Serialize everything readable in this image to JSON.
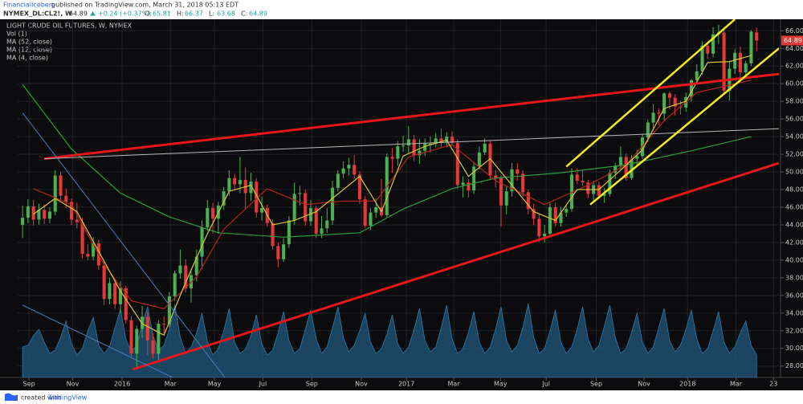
{
  "header": {
    "publisher": "FinancialIceberg",
    "published": "published on TradingView.com, March 31, 2018 05:13 EDT",
    "symbol": "NYMEX_DL:CL2!, W",
    "last": 64.89,
    "change": "+0.24 (+0.37%)",
    "ohlc": [
      {
        "label": "O:",
        "value": 65.81
      },
      {
        "label": "H:",
        "value": 66.37
      },
      {
        "label": "L:",
        "value": 63.68
      },
      {
        "label": "C:",
        "value": 64.89
      }
    ]
  },
  "footer": {
    "text": "created with",
    "brand": "TradingView"
  },
  "chart_data": {
    "type": "candlestick",
    "title": "LIGHT CRUDE OIL FUTURES, W, NYMEX",
    "up_color": "#4caf50",
    "down_color": "#e53935",
    "grid": true,
    "last_price": 64.89,
    "xlim": [
      -0.9,
      139.1
    ],
    "ylim": [
      26.7,
      67.3
    ],
    "xticks": [
      {
        "value": 1.2,
        "label": "Sep"
      },
      {
        "value": 9.2,
        "label": "Nov"
      },
      {
        "value": 18.3,
        "label": "2016"
      },
      {
        "value": 27.2,
        "label": "Mar"
      },
      {
        "value": 35.3,
        "label": "May"
      },
      {
        "value": 44.2,
        "label": "Jul"
      },
      {
        "value": 53.2,
        "label": "Sep"
      },
      {
        "value": 62.3,
        "label": "Nov"
      },
      {
        "value": 70.6,
        "label": "2017"
      },
      {
        "value": 79.3,
        "label": "Mar"
      },
      {
        "value": 87.9,
        "label": "May"
      },
      {
        "value": 96.3,
        "label": "Jul"
      },
      {
        "value": 105.5,
        "label": "Sep"
      },
      {
        "value": 114.3,
        "label": "Nov"
      },
      {
        "value": 122.3,
        "label": "2018"
      },
      {
        "value": 131.2,
        "label": "Mar"
      },
      {
        "value": 138.1,
        "label": "23"
      }
    ],
    "yticks": [
      {
        "value": 28,
        "label": "28.00"
      },
      {
        "value": 30,
        "label": "30.00"
      },
      {
        "value": 32,
        "label": "32.00"
      },
      {
        "value": 34,
        "label": "34.00"
      },
      {
        "value": 36,
        "label": "36.00"
      },
      {
        "value": 38,
        "label": "38.00"
      },
      {
        "value": 40,
        "label": "40.00"
      },
      {
        "value": 42,
        "label": "42.00"
      },
      {
        "value": 44,
        "label": "44.00"
      },
      {
        "value": 46,
        "label": "46.00"
      },
      {
        "value": 48,
        "label": "48.00"
      },
      {
        "value": 50,
        "label": "50.00"
      },
      {
        "value": 52,
        "label": "52.00"
      },
      {
        "value": 54,
        "label": "54.00"
      },
      {
        "value": 56,
        "label": "56.00"
      },
      {
        "value": 58,
        "label": "58.00"
      },
      {
        "value": 60,
        "label": "60.00"
      },
      {
        "value": 62,
        "label": "62.00"
      },
      {
        "value": 64,
        "label": "64.00"
      },
      {
        "value": 66,
        "label": "66.00"
      }
    ],
    "ohlc": [
      [
        44.0,
        46.2,
        42.5,
        44.8
      ],
      [
        44.8,
        46.9,
        44.2,
        46.1
      ],
      [
        46.1,
        46.8,
        43.9,
        44.6
      ],
      [
        44.6,
        46.4,
        44.0,
        45.7
      ],
      [
        45.7,
        46.3,
        44.1,
        44.7
      ],
      [
        44.7,
        46.0,
        44.2,
        45.5
      ],
      [
        45.5,
        50.2,
        45.1,
        49.6
      ],
      [
        49.6,
        50.0,
        46.8,
        47.3
      ],
      [
        47.3,
        48.1,
        45.9,
        46.6
      ],
      [
        46.6,
        47.0,
        44.0,
        44.6
      ],
      [
        44.6,
        46.5,
        43.6,
        44.3
      ],
      [
        44.3,
        44.8,
        40.2,
        40.7
      ],
      [
        40.7,
        41.8,
        40.0,
        40.4
      ],
      [
        40.4,
        42.6,
        40.0,
        41.9
      ],
      [
        41.9,
        42.3,
        38.9,
        39.4
      ],
      [
        39.4,
        39.9,
        34.9,
        35.6
      ],
      [
        35.6,
        38.0,
        35.0,
        37.4
      ],
      [
        37.4,
        37.9,
        34.5,
        35.0
      ],
      [
        35.0,
        37.6,
        34.0,
        36.8
      ],
      [
        36.8,
        37.1,
        32.8,
        33.2
      ],
      [
        33.2,
        33.7,
        29.0,
        29.4
      ],
      [
        29.4,
        32.6,
        27.6,
        32.2
      ],
      [
        32.2,
        34.8,
        31.2,
        33.6
      ],
      [
        33.6,
        34.2,
        29.3,
        30.9
      ],
      [
        30.9,
        31.7,
        28.9,
        29.4
      ],
      [
        29.4,
        33.2,
        28.5,
        32.8
      ],
      [
        32.8,
        33.6,
        31.7,
        32.7
      ],
      [
        32.7,
        36.4,
        32.4,
        35.9
      ],
      [
        35.9,
        38.8,
        35.4,
        38.5
      ],
      [
        38.5,
        41.2,
        37.9,
        39.4
      ],
      [
        39.4,
        40.1,
        36.3,
        36.8
      ],
      [
        36.8,
        39.0,
        35.2,
        38.3
      ],
      [
        38.3,
        41.2,
        37.6,
        40.4
      ],
      [
        40.4,
        44.5,
        39.0,
        43.7
      ],
      [
        43.7,
        46.8,
        43.3,
        45.9
      ],
      [
        45.9,
        46.5,
        43.0,
        44.7
      ],
      [
        44.7,
        46.6,
        43.0,
        46.2
      ],
      [
        46.2,
        48.3,
        45.7,
        47.8
      ],
      [
        47.8,
        50.2,
        47.3,
        49.3
      ],
      [
        49.3,
        49.8,
        48.0,
        48.6
      ],
      [
        48.6,
        51.7,
        47.6,
        49.1
      ],
      [
        49.1,
        50.5,
        45.8,
        47.6
      ],
      [
        47.6,
        49.9,
        46.7,
        48.9
      ],
      [
        48.9,
        49.3,
        44.8,
        45.4
      ],
      [
        45.4,
        47.2,
        44.5,
        45.9
      ],
      [
        45.9,
        46.3,
        43.8,
        44.2
      ],
      [
        44.2,
        44.6,
        41.2,
        41.6
      ],
      [
        41.6,
        42.0,
        39.2,
        40.1
      ],
      [
        40.1,
        42.5,
        39.8,
        41.8
      ],
      [
        41.8,
        45.0,
        41.4,
        44.5
      ],
      [
        44.5,
        48.8,
        44.0,
        47.5
      ],
      [
        47.5,
        48.4,
        46.2,
        47.6
      ],
      [
        47.6,
        48.0,
        43.9,
        44.4
      ],
      [
        44.4,
        46.8,
        43.9,
        45.9
      ],
      [
        45.9,
        46.2,
        42.5,
        43.0
      ],
      [
        43.0,
        45.0,
        42.5,
        43.6
      ],
      [
        43.6,
        45.9,
        43.1,
        44.5
      ],
      [
        44.5,
        49.0,
        44.0,
        48.2
      ],
      [
        48.2,
        50.2,
        47.8,
        49.8
      ],
      [
        49.8,
        51.2,
        49.3,
        50.4
      ],
      [
        50.4,
        51.6,
        49.6,
        50.8
      ],
      [
        50.8,
        51.9,
        49.2,
        49.7
      ],
      [
        49.7,
        50.1,
        46.4,
        46.9
      ],
      [
        46.9,
        47.3,
        43.6,
        43.9
      ],
      [
        43.9,
        45.9,
        43.4,
        45.4
      ],
      [
        45.4,
        47.0,
        44.8,
        46.0
      ],
      [
        46.0,
        49.2,
        44.9,
        45.1
      ],
      [
        45.1,
        52.1,
        44.9,
        51.7
      ],
      [
        51.7,
        52.7,
        49.9,
        51.5
      ],
      [
        51.5,
        53.5,
        50.7,
        52.9
      ],
      [
        52.9,
        54.1,
        52.3,
        53.0
      ],
      [
        53.0,
        55.2,
        52.1,
        53.7
      ],
      [
        53.7,
        54.2,
        51.2,
        51.9
      ],
      [
        51.9,
        53.7,
        50.9,
        52.4
      ],
      [
        52.4,
        53.8,
        51.8,
        53.2
      ],
      [
        53.2,
        54.0,
        52.2,
        53.2
      ],
      [
        53.2,
        54.4,
        52.8,
        53.8
      ],
      [
        53.8,
        54.9,
        52.7,
        53.4
      ],
      [
        53.4,
        54.5,
        52.8,
        54.0
      ],
      [
        54.0,
        54.6,
        52.9,
        53.3
      ],
      [
        53.3,
        53.7,
        48.1,
        48.5
      ],
      [
        48.5,
        49.5,
        47.1,
        48.8
      ],
      [
        48.8,
        49.2,
        47.1,
        47.9
      ],
      [
        47.9,
        51.0,
        47.5,
        50.6
      ],
      [
        50.6,
        52.9,
        50.3,
        52.2
      ],
      [
        52.2,
        53.8,
        51.9,
        53.2
      ],
      [
        53.2,
        53.5,
        49.2,
        49.6
      ],
      [
        49.6,
        50.2,
        48.2,
        49.3
      ],
      [
        49.3,
        49.6,
        43.8,
        46.2
      ],
      [
        46.2,
        48.4,
        45.2,
        47.8
      ],
      [
        47.8,
        51.0,
        47.2,
        50.3
      ],
      [
        50.3,
        51.0,
        49.0,
        49.8
      ],
      [
        49.8,
        50.2,
        47.2,
        47.7
      ],
      [
        47.7,
        48.0,
        45.2,
        45.8
      ],
      [
        45.8,
        46.4,
        44.0,
        44.7
      ],
      [
        44.7,
        45.2,
        42.1,
        42.7
      ],
      [
        42.7,
        44.0,
        42.0,
        43.0
      ],
      [
        43.0,
        46.5,
        42.6,
        46.0
      ],
      [
        46.0,
        46.5,
        43.8,
        44.2
      ],
      [
        44.2,
        46.0,
        43.8,
        45.4
      ],
      [
        45.4,
        46.3,
        44.9,
        45.8
      ],
      [
        45.8,
        50.4,
        45.5,
        49.7
      ],
      [
        49.7,
        50.4,
        48.6,
        49.0
      ],
      [
        49.0,
        50.2,
        48.4,
        48.8
      ],
      [
        48.8,
        49.1,
        47.0,
        47.5
      ],
      [
        47.5,
        49.0,
        46.5,
        48.5
      ],
      [
        48.5,
        48.9,
        46.9,
        47.3
      ],
      [
        47.3,
        48.2,
        46.5,
        47.5
      ],
      [
        47.5,
        50.3,
        47.2,
        49.9
      ],
      [
        49.9,
        51.0,
        49.2,
        50.7
      ],
      [
        50.7,
        52.9,
        50.2,
        51.7
      ],
      [
        51.7,
        52.1,
        49.0,
        49.3
      ],
      [
        49.3,
        51.9,
        49.1,
        51.5
      ],
      [
        51.5,
        52.5,
        50.8,
        51.8
      ],
      [
        51.8,
        54.3,
        51.5,
        53.9
      ],
      [
        53.9,
        55.9,
        53.4,
        55.6
      ],
      [
        55.6,
        57.7,
        54.9,
        56.7
      ],
      [
        56.7,
        57.2,
        55.3,
        56.6
      ],
      [
        56.6,
        59.0,
        55.8,
        58.9
      ],
      [
        58.9,
        59.1,
        57.1,
        58.4
      ],
      [
        58.4,
        58.8,
        56.4,
        57.4
      ],
      [
        57.4,
        58.1,
        56.5,
        57.3
      ],
      [
        57.3,
        59.0,
        56.8,
        58.5
      ],
      [
        58.5,
        60.5,
        58.0,
        60.4
      ],
      [
        60.4,
        62.2,
        59.9,
        61.4
      ],
      [
        61.4,
        64.8,
        61.0,
        64.3
      ],
      [
        64.3,
        64.8,
        62.8,
        63.4
      ],
      [
        63.4,
        66.4,
        63.0,
        65.6
      ],
      [
        65.6,
        66.7,
        64.5,
        65.8
      ],
      [
        65.8,
        66.1,
        58.9,
        59.2
      ],
      [
        59.2,
        62.6,
        58.1,
        61.7
      ],
      [
        61.7,
        63.9,
        61.1,
        63.5
      ],
      [
        63.5,
        64.2,
        60.1,
        61.3
      ],
      [
        61.3,
        62.6,
        60.9,
        62.3
      ],
      [
        62.3,
        66.1,
        62.0,
        65.9
      ],
      [
        65.81,
        66.37,
        63.68,
        64.89
      ]
    ],
    "volume": {
      "name": "Vol (1)",
      "color": "#1d4f6e",
      "ylim": [
        0,
        100
      ],
      "values": [
        38,
        40,
        52,
        60,
        44,
        30,
        34,
        50,
        70,
        42,
        28,
        36,
        58,
        75,
        40,
        30,
        38,
        62,
        85,
        48,
        32,
        40,
        66,
        88,
        52,
        34,
        40,
        60,
        90,
        50,
        30,
        38,
        55,
        80,
        45,
        28,
        36,
        58,
        86,
        44,
        30,
        35,
        52,
        78,
        42,
        28,
        34,
        56,
        82,
        46,
        30,
        36,
        60,
        84,
        48,
        30,
        38,
        62,
        88,
        50,
        32,
        40,
        58,
        80,
        44,
        30,
        36,
        54,
        78,
        42,
        30,
        38,
        60,
        86,
        46,
        32,
        38,
        62,
        90,
        48,
        30,
        36,
        56,
        82,
        44,
        30,
        38,
        60,
        88,
        46,
        32,
        40,
        62,
        92,
        50,
        30,
        36,
        58,
        84,
        44,
        30,
        38,
        60,
        88,
        48,
        32,
        40,
        64,
        90,
        50,
        30,
        36,
        56,
        80,
        44,
        30,
        38,
        62,
        86,
        46,
        32,
        40,
        60,
        84,
        48,
        30,
        36,
        58,
        82,
        44,
        30,
        38,
        56,
        70,
        40,
        28
      ]
    },
    "series": [
      {
        "name": "MA (52, close)",
        "color": "#2e9d3a",
        "x": [
          0,
          9,
          18,
          27,
          36,
          48,
          62,
          70,
          79,
          87,
          99,
          111,
          123,
          134
        ],
        "values": [
          59.9,
          52.6,
          47.6,
          44.9,
          43.1,
          42.6,
          43.1,
          45.8,
          48.1,
          49.3,
          49.9,
          50.8,
          52.4,
          54.0
        ]
      },
      {
        "name": "MA (12, close)",
        "color": "#b3261e",
        "x": [
          2,
          9,
          15,
          20,
          26,
          32,
          37,
          45,
          52,
          59,
          65,
          71,
          79,
          87,
          96,
          104,
          111,
          118,
          124,
          134
        ],
        "values": [
          48.1,
          46.3,
          39.5,
          35.4,
          34.5,
          38.1,
          43.5,
          48.1,
          46.3,
          46.7,
          46.7,
          51.7,
          53.1,
          49.0,
          46.3,
          48.5,
          50.8,
          55.8,
          59.0,
          60.4
        ]
      },
      {
        "name": "MA (4, close)",
        "color": "#d6c23a",
        "x": [
          2,
          6,
          10,
          14,
          18,
          22,
          26,
          30,
          34,
          38,
          42,
          46,
          50,
          54,
          58,
          62,
          66,
          70,
          74,
          78,
          82,
          86,
          90,
          94,
          98,
          102,
          106,
          110,
          114,
          118,
          122,
          126,
          130,
          134
        ],
        "values": [
          45.2,
          47.0,
          45.5,
          41.0,
          36.5,
          32.8,
          31.5,
          37.5,
          43.0,
          47.8,
          48.5,
          44.0,
          44.5,
          45.5,
          47.5,
          49.5,
          45.5,
          51.8,
          52.9,
          53.6,
          49.5,
          51.5,
          48.5,
          45.5,
          44.5,
          48.0,
          48.0,
          50.2,
          52.5,
          57.2,
          58.0,
          62.4,
          62.5,
          63.2
        ]
      }
    ],
    "trendlines": [
      {
        "color": "#e8151b",
        "width": 3,
        "x": [
          4,
          139.1
        ],
        "values": [
          51.5,
          61.1
        ]
      },
      {
        "color": "#e8151b",
        "width": 3,
        "x": [
          20.2,
          139.1
        ],
        "values": [
          27.6,
          51.0
        ]
      },
      {
        "color": "#b8b8b8",
        "width": 1,
        "x": [
          4,
          139.1
        ],
        "values": [
          51.5,
          54.9
        ]
      },
      {
        "color": "#4f79b8",
        "width": 1,
        "x": [
          0,
          37.2
        ],
        "values": [
          56.7,
          26.7
        ]
      },
      {
        "color": "#4f79b8",
        "width": 1,
        "x": [
          0,
          27.6
        ],
        "values": [
          34.9,
          26.7
        ]
      },
      {
        "color": "#f2ec1c",
        "width": 2.5,
        "x": [
          100,
          131
        ],
        "values": [
          50.6,
          67.3
        ]
      },
      {
        "color": "#f2ec1c",
        "width": 2.5,
        "x": [
          104.4,
          139.1
        ],
        "values": [
          46.3,
          64.0
        ]
      }
    ]
  }
}
